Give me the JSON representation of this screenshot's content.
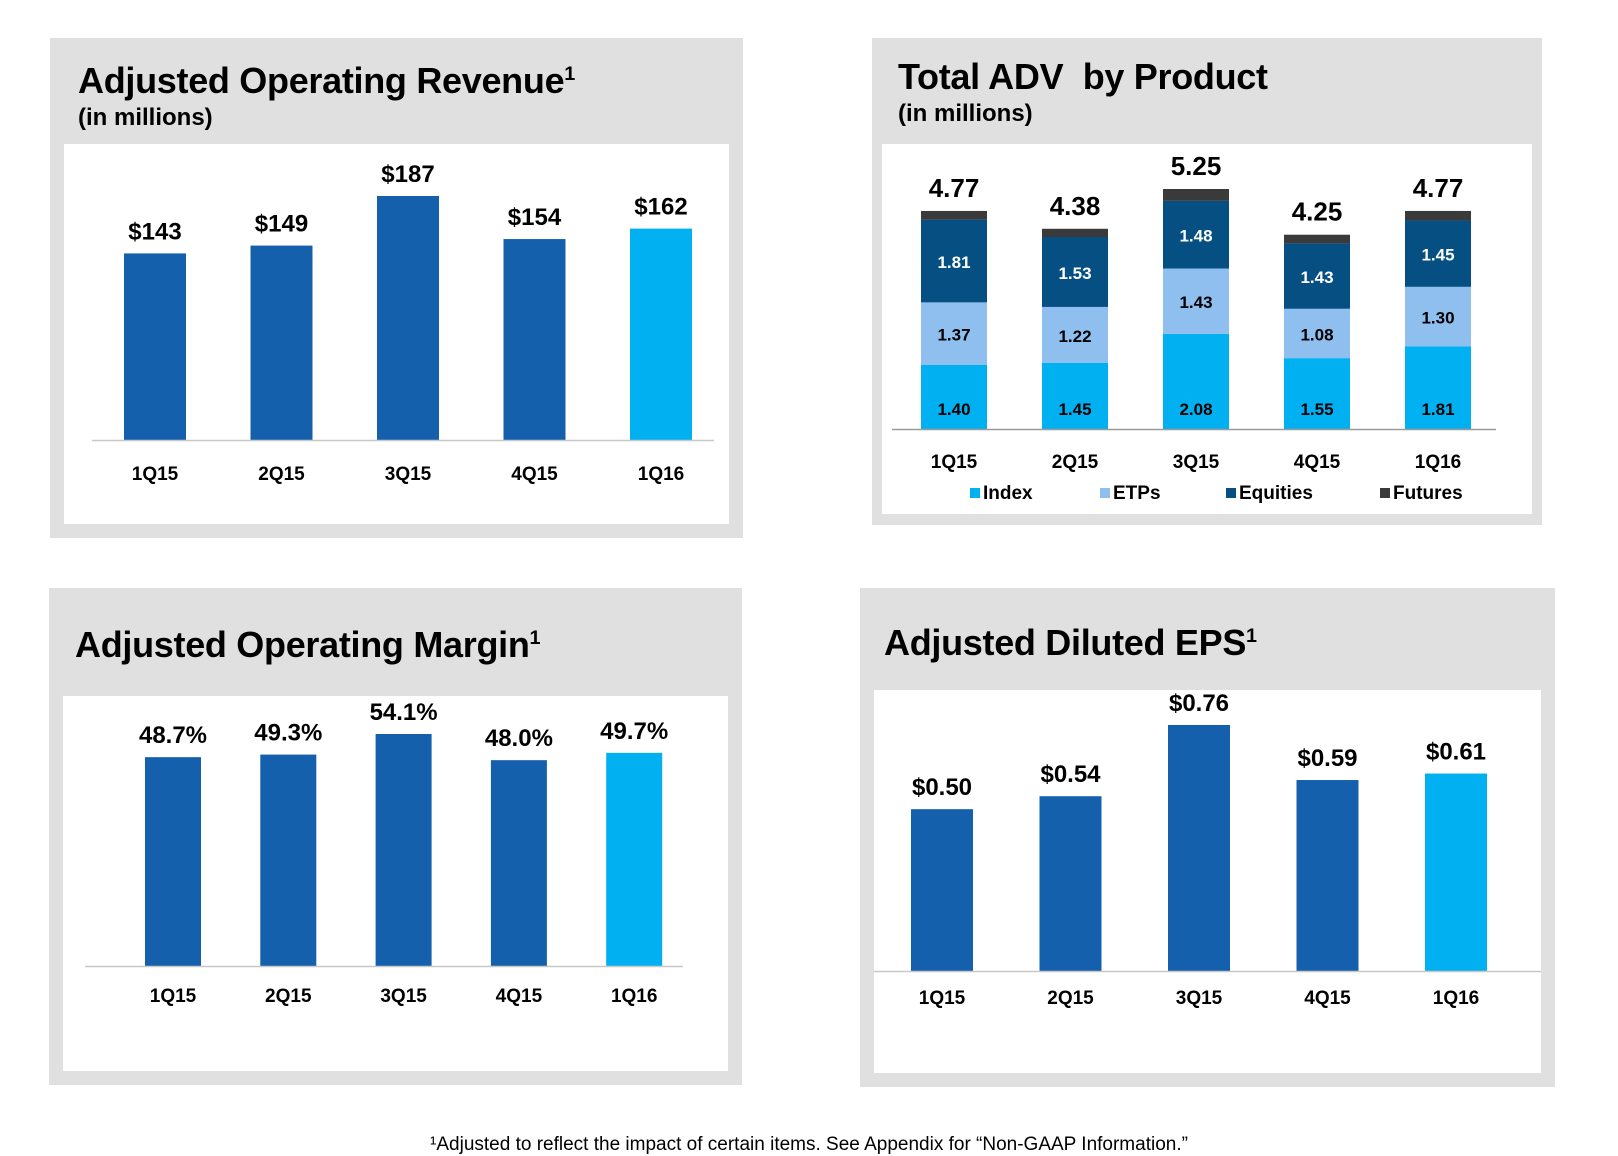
{
  "colors": {
    "bar_primary": "#1560ad",
    "bar_highlight": "#00b0f0",
    "index": "#00b0f0",
    "etps": "#8fbfef",
    "equities": "#064f82",
    "futures": "#3a3a3a",
    "panel_bg": "#e0e0e0",
    "axis": "#c8c8c8"
  },
  "footnote": "¹Adjusted to reflect the impact of certain items.  See Appendix for  “Non-GAAP Information.”",
  "chart_data": [
    {
      "id": "revenue",
      "type": "bar",
      "title": "Adjusted Operating Revenue",
      "title_sup": "1",
      "subtitle": "(in millions)",
      "categories": [
        "1Q15",
        "2Q15",
        "3Q15",
        "4Q15",
        "1Q16"
      ],
      "values": [
        143,
        149,
        187,
        154,
        162
      ],
      "labels": [
        "$143",
        "$149",
        "$187",
        "$154",
        "$162"
      ],
      "highlight_index": 4,
      "ylim": [
        0,
        187
      ],
      "grid": false,
      "xlabel": "",
      "ylabel": ""
    },
    {
      "id": "adv",
      "type": "bar",
      "stacked": true,
      "title": "Total ADV  by Product",
      "title_sup": "",
      "subtitle": "(in millions)",
      "categories": [
        "1Q15",
        "2Q15",
        "3Q15",
        "4Q15",
        "1Q16"
      ],
      "series": [
        {
          "name": "Index",
          "color_key": "index",
          "values": [
            1.4,
            1.45,
            2.08,
            1.55,
            1.81
          ],
          "labels": [
            "1.40",
            "1.45",
            "2.08",
            "1.55",
            "1.81"
          ],
          "label_color": "#000000"
        },
        {
          "name": "ETPs",
          "color_key": "etps",
          "values": [
            1.37,
            1.22,
            1.43,
            1.08,
            1.3
          ],
          "labels": [
            "1.37",
            "1.22",
            "1.43",
            "1.08",
            "1.30"
          ],
          "label_color": "#000000"
        },
        {
          "name": "Equities",
          "color_key": "equities",
          "values": [
            1.81,
            1.53,
            1.48,
            1.43,
            1.45
          ],
          "labels": [
            "1.81",
            "1.53",
            "1.48",
            "1.43",
            "1.45"
          ],
          "label_color": "#ffffff"
        },
        {
          "name": "Futures",
          "color_key": "futures",
          "values": [
            0.19,
            0.18,
            0.26,
            0.19,
            0.21
          ],
          "labels": [
            "",
            "",
            "",
            "",
            ""
          ],
          "label_color": "#ffffff"
        }
      ],
      "totals": [
        4.77,
        4.38,
        5.25,
        4.25,
        4.77
      ],
      "total_labels": [
        "4.77",
        "4.38",
        "5.25",
        "4.25",
        "4.77"
      ],
      "legend": [
        "Index",
        "ETPs",
        "Equities",
        "Futures"
      ],
      "legend_position": "bottom",
      "ylim": [
        0,
        5.25
      ],
      "grid": false,
      "xlabel": "",
      "ylabel": ""
    },
    {
      "id": "margin",
      "type": "bar",
      "title": "Adjusted Operating Margin",
      "title_sup": "1",
      "subtitle": "",
      "categories": [
        "1Q15",
        "2Q15",
        "3Q15",
        "4Q15",
        "1Q16"
      ],
      "values": [
        48.7,
        49.3,
        54.1,
        48.0,
        49.7
      ],
      "labels": [
        "48.7%",
        "49.3%",
        "54.1%",
        "48.0%",
        "49.7%"
      ],
      "highlight_index": 4,
      "ylim": [
        0,
        54.1
      ],
      "grid": false,
      "xlabel": "",
      "ylabel": ""
    },
    {
      "id": "eps",
      "type": "bar",
      "title": "Adjusted Diluted EPS",
      "title_sup": "1",
      "subtitle": "",
      "categories": [
        "1Q15",
        "2Q15",
        "3Q15",
        "4Q15",
        "1Q16"
      ],
      "values": [
        0.5,
        0.54,
        0.76,
        0.59,
        0.61
      ],
      "labels": [
        "$0.50",
        "$0.54",
        "$0.76",
        "$0.59",
        "$0.61"
      ],
      "highlight_index": 4,
      "ylim": [
        0,
        0.76
      ],
      "grid": false,
      "xlabel": "",
      "ylabel": ""
    }
  ]
}
